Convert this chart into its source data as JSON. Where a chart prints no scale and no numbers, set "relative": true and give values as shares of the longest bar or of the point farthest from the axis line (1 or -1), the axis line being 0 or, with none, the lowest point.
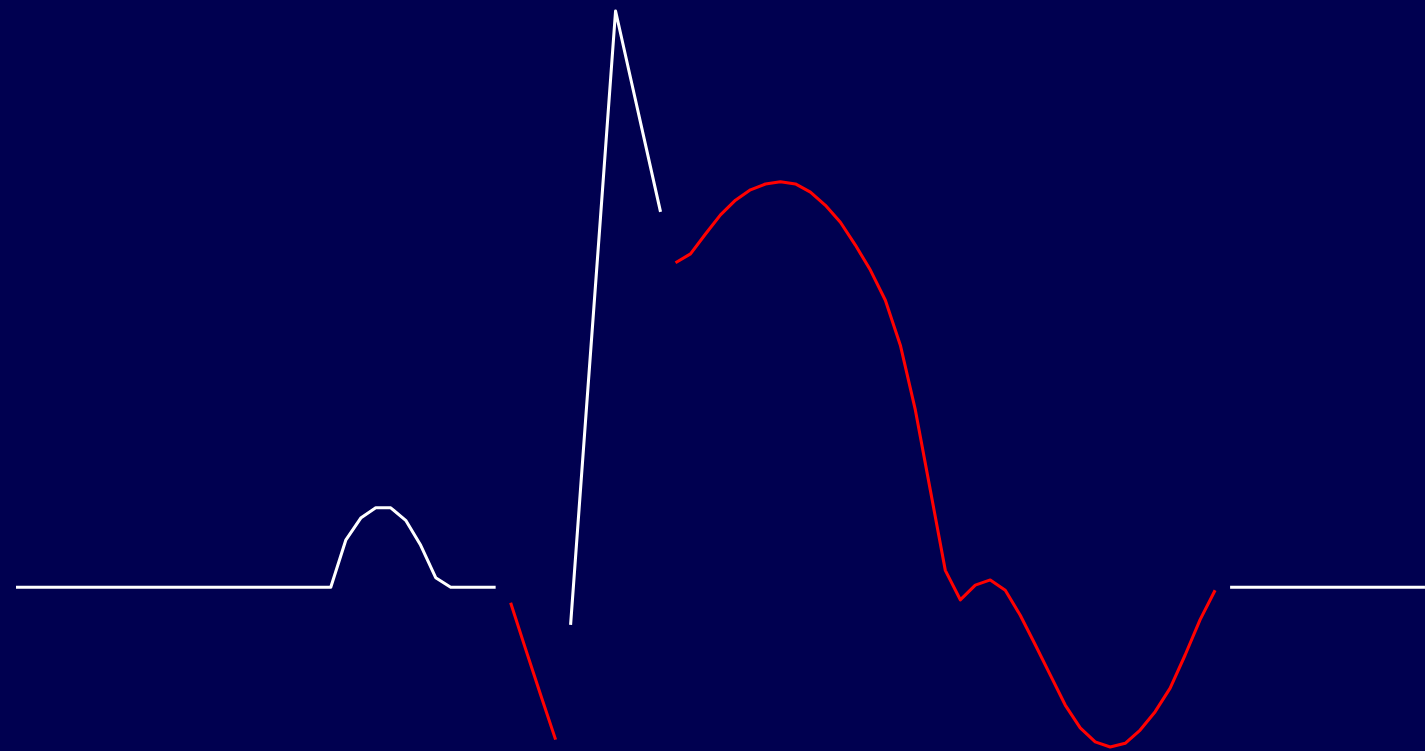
{
  "chart_data": {
    "type": "line",
    "relative": true,
    "marker": "none",
    "line_style": "solid",
    "categories": [
      null,
      null,
      null,
      null,
      null,
      null,
      null,
      null,
      null,
      null,
      null,
      null,
      null,
      null,
      null,
      null,
      null,
      null,
      null,
      null,
      null,
      null,
      null,
      null,
      null,
      null,
      null,
      null,
      null,
      null,
      null,
      null,
      null,
      null,
      null,
      null,
      null,
      null,
      null,
      null,
      null,
      null,
      null,
      null,
      null,
      null,
      null,
      null,
      null,
      null,
      null,
      null,
      null,
      null,
      null,
      null,
      null,
      null,
      null,
      null,
      null,
      null,
      null,
      null,
      null,
      null,
      null,
      null,
      null,
      null,
      null,
      null,
      null,
      null,
      null,
      null,
      null,
      null,
      null,
      null,
      null,
      null,
      null,
      null,
      null,
      null,
      null,
      null,
      null,
      null,
      null,
      null,
      null,
      null,
      null
    ],
    "series": [
      {
        "color": "#ffffff",
        "values": [
          0.217,
          0.217,
          0.217,
          0.217,
          0.217,
          0.217,
          0.217,
          0.217,
          0.217,
          0.217,
          0.217,
          0.217,
          0.217,
          0.217,
          0.217,
          0.217,
          0.217,
          0.217,
          0.217,
          0.217,
          0.217,
          0.217,
          0.281,
          0.311,
          0.325,
          0.325,
          0.308,
          0.274,
          0.23,
          0.217,
          0.217,
          0.217,
          0.217,
          null,
          null,
          null,
          null,
          null,
          null,
          null,
          null,
          null,
          null,
          null,
          null,
          null,
          null,
          null,
          null,
          null,
          null,
          null,
          null,
          null,
          null,
          null,
          null,
          null,
          null,
          null,
          null,
          null,
          null,
          null,
          null,
          null,
          null,
          null,
          null,
          null,
          null,
          null,
          null,
          null,
          null,
          null,
          null,
          null,
          null,
          null,
          null,
          null,
          null,
          null,
          null,
          null,
          null,
          null,
          null,
          null,
          null,
          null,
          null,
          null,
          null
        ]
      },
      {
        "color": "#ff0000",
        "values": [
          null,
          null,
          null,
          null,
          null,
          null,
          null,
          null,
          null,
          null,
          null,
          null,
          null,
          null,
          null,
          null,
          null,
          null,
          null,
          null,
          null,
          null,
          null,
          null,
          null,
          null,
          null,
          null,
          null,
          null,
          null,
          null,
          null,
          0.196,
          0.133,
          0.071,
          0.01,
          null,
          null,
          null,
          null,
          null,
          null,
          null,
          null,
          null,
          null,
          null,
          null,
          null,
          null,
          null,
          null,
          null,
          null,
          null,
          null,
          null,
          null,
          null,
          null,
          null,
          null,
          null,
          null,
          null,
          null,
          null,
          null,
          null,
          null,
          null,
          null,
          null,
          null,
          null,
          null,
          null,
          null,
          null,
          null,
          null,
          null,
          null,
          null,
          null,
          null,
          null,
          null,
          null,
          null,
          null,
          null,
          null,
          null
        ]
      },
      {
        "color": "#ffffff",
        "values": [
          null,
          null,
          null,
          null,
          null,
          null,
          null,
          null,
          null,
          null,
          null,
          null,
          null,
          null,
          null,
          null,
          null,
          null,
          null,
          null,
          null,
          null,
          null,
          null,
          null,
          null,
          null,
          null,
          null,
          null,
          null,
          null,
          null,
          null,
          null,
          null,
          null,
          0.166,
          0.444,
          0.721,
          1,
          0.909,
          0.818,
          0.727,
          null,
          null,
          null,
          null,
          null,
          null,
          null,
          null,
          null,
          null,
          null,
          null,
          null,
          null,
          null,
          null,
          null,
          null,
          null,
          null,
          null,
          null,
          null,
          null,
          null,
          null,
          null,
          null,
          null,
          null,
          null,
          null,
          null,
          null,
          null,
          null,
          null,
          null,
          null,
          null,
          null,
          null,
          null,
          null,
          null,
          null,
          null,
          null,
          null,
          null,
          null
        ]
      },
      {
        "color": "#ff0000",
        "values": [
          null,
          null,
          null,
          null,
          null,
          null,
          null,
          null,
          null,
          null,
          null,
          null,
          null,
          null,
          null,
          null,
          null,
          null,
          null,
          null,
          null,
          null,
          null,
          null,
          null,
          null,
          null,
          null,
          null,
          null,
          null,
          null,
          null,
          null,
          null,
          null,
          null,
          null,
          null,
          null,
          null,
          null,
          null,
          null,
          0.658,
          0.67,
          0.697,
          0.723,
          0.743,
          0.757,
          0.765,
          0.768,
          0.765,
          0.754,
          0.736,
          0.713,
          0.682,
          0.648,
          0.607,
          0.546,
          0.458,
          0.349,
          0.24,
          0.2,
          0.22,
          0.227,
          0.213,
          0.179,
          0.139,
          0.098,
          0.057,
          0.026,
          0.007,
          0,
          0.005,
          0.023,
          0.048,
          0.08,
          0.125,
          0.173,
          0.213,
          null,
          null,
          null,
          null,
          null,
          null,
          null,
          null,
          null,
          null,
          null,
          null,
          null,
          null
        ]
      },
      {
        "color": "#ffffff",
        "values": [
          null,
          null,
          null,
          null,
          null,
          null,
          null,
          null,
          null,
          null,
          null,
          null,
          null,
          null,
          null,
          null,
          null,
          null,
          null,
          null,
          null,
          null,
          null,
          null,
          null,
          null,
          null,
          null,
          null,
          null,
          null,
          null,
          null,
          null,
          null,
          null,
          null,
          null,
          null,
          null,
          null,
          null,
          null,
          null,
          null,
          null,
          null,
          null,
          null,
          null,
          null,
          null,
          null,
          null,
          null,
          null,
          null,
          null,
          null,
          null,
          null,
          null,
          null,
          null,
          null,
          null,
          null,
          null,
          null,
          null,
          null,
          null,
          null,
          null,
          null,
          null,
          null,
          null,
          null,
          null,
          null,
          0.217,
          0.217,
          0.217,
          0.217,
          0.217,
          0.217,
          0.217,
          0.217,
          0.217,
          0.217,
          0.217,
          0.217,
          0.217,
          0.217
        ]
      }
    ]
  }
}
